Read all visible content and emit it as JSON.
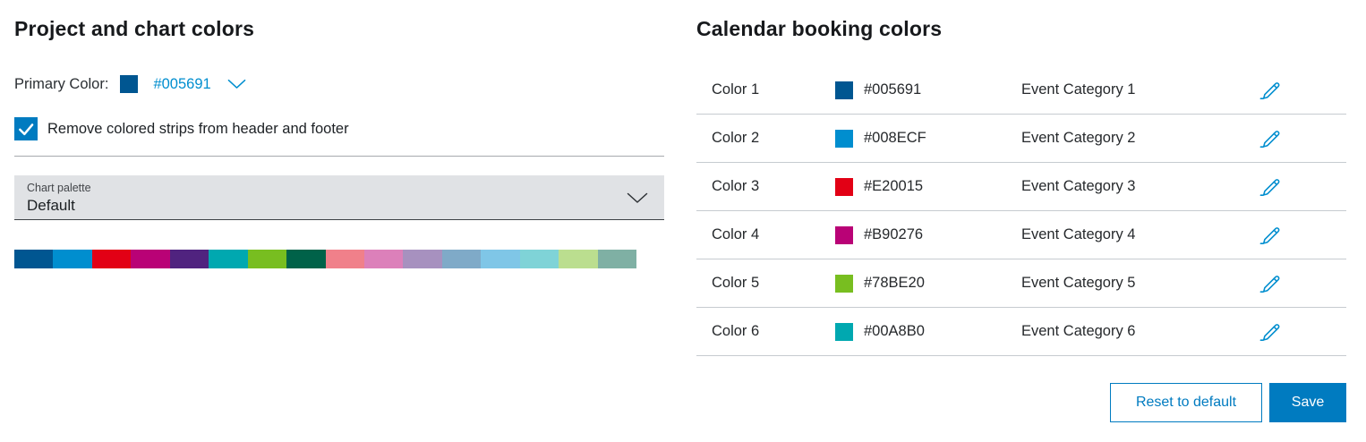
{
  "colors": {
    "accent_blue": "#007BC0",
    "link_blue": "#008ECF"
  },
  "left": {
    "title": "Project and chart colors",
    "primary_color": {
      "label": "Primary Color:",
      "value": "#005691"
    },
    "checkbox": {
      "label": "Remove colored strips from header and footer",
      "checked": true
    },
    "palette_dropdown": {
      "label": "Chart palette",
      "value": "Default"
    },
    "palette_colors": [
      "#005691",
      "#008ECF",
      "#E20015",
      "#B90276",
      "#50237F",
      "#00A8B0",
      "#78BE20",
      "#006249",
      "#F0808A",
      "#DC80BA",
      "#A791BF",
      "#7FAAC8",
      "#7FC6E7",
      "#7FD3D7",
      "#BBDE8F",
      "#7FB0A4"
    ]
  },
  "right": {
    "title": "Calendar booking colors",
    "rows": [
      {
        "name": "Color 1",
        "hex": "#005691",
        "category": "Event Category 1"
      },
      {
        "name": "Color 2",
        "hex": "#008ECF",
        "category": "Event Category 2"
      },
      {
        "name": "Color 3",
        "hex": "#E20015",
        "category": "Event Category 3"
      },
      {
        "name": "Color 4",
        "hex": "#B90276",
        "category": "Event Category 4"
      },
      {
        "name": "Color 5",
        "hex": "#78BE20",
        "category": "Event Category 5"
      },
      {
        "name": "Color 6",
        "hex": "#00A8B0",
        "category": "Event Category 6"
      }
    ],
    "buttons": {
      "reset": "Reset to default",
      "save": "Save"
    }
  }
}
